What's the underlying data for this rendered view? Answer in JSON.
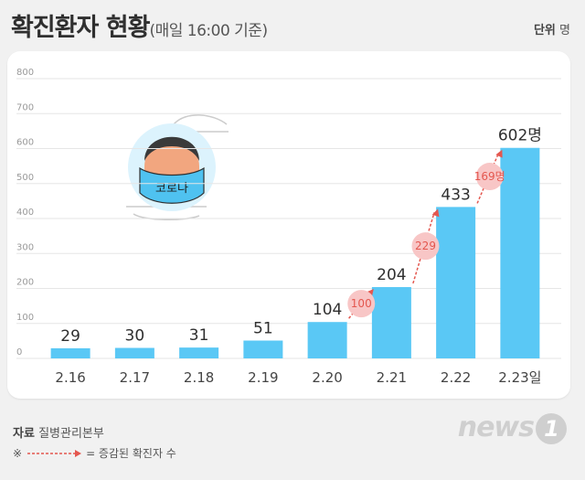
{
  "header": {
    "title": "확진환자 현황",
    "subtitle": "(매일 16:00 기준)",
    "unit_label": "단위",
    "unit_value": "명"
  },
  "illustration": {
    "mask_text": "코로나"
  },
  "footer": {
    "source_label": "자료",
    "source_value": "질병관리본부",
    "note_symbol": "※",
    "note_text": "= 증감된 확진자 수",
    "logo_text": "news",
    "logo_number": "1"
  },
  "colors": {
    "bar": "#5ac8f5",
    "increase": "#e4574f",
    "bubble": "#f8c6c6",
    "grid": "#e6e6e6"
  },
  "chart_data": {
    "type": "bar",
    "categories": [
      "2.16",
      "2.17",
      "2.18",
      "2.19",
      "2.20",
      "2.21",
      "2.22",
      "2.23일"
    ],
    "values": [
      29,
      30,
      31,
      51,
      104,
      204,
      433,
      602
    ],
    "value_labels": [
      "29",
      "30",
      "31",
      "51",
      "104",
      "204",
      "433",
      "602명"
    ],
    "y_ticks": [
      "0",
      "100",
      "200",
      "300",
      "400",
      "500",
      "600",
      "700",
      "800"
    ],
    "ylim": [
      0,
      800
    ],
    "grid": true,
    "increases": [
      {
        "from_index": 4,
        "to_index": 5,
        "label": "100"
      },
      {
        "from_index": 5,
        "to_index": 6,
        "label": "229"
      },
      {
        "from_index": 6,
        "to_index": 7,
        "label": "169명"
      }
    ]
  }
}
